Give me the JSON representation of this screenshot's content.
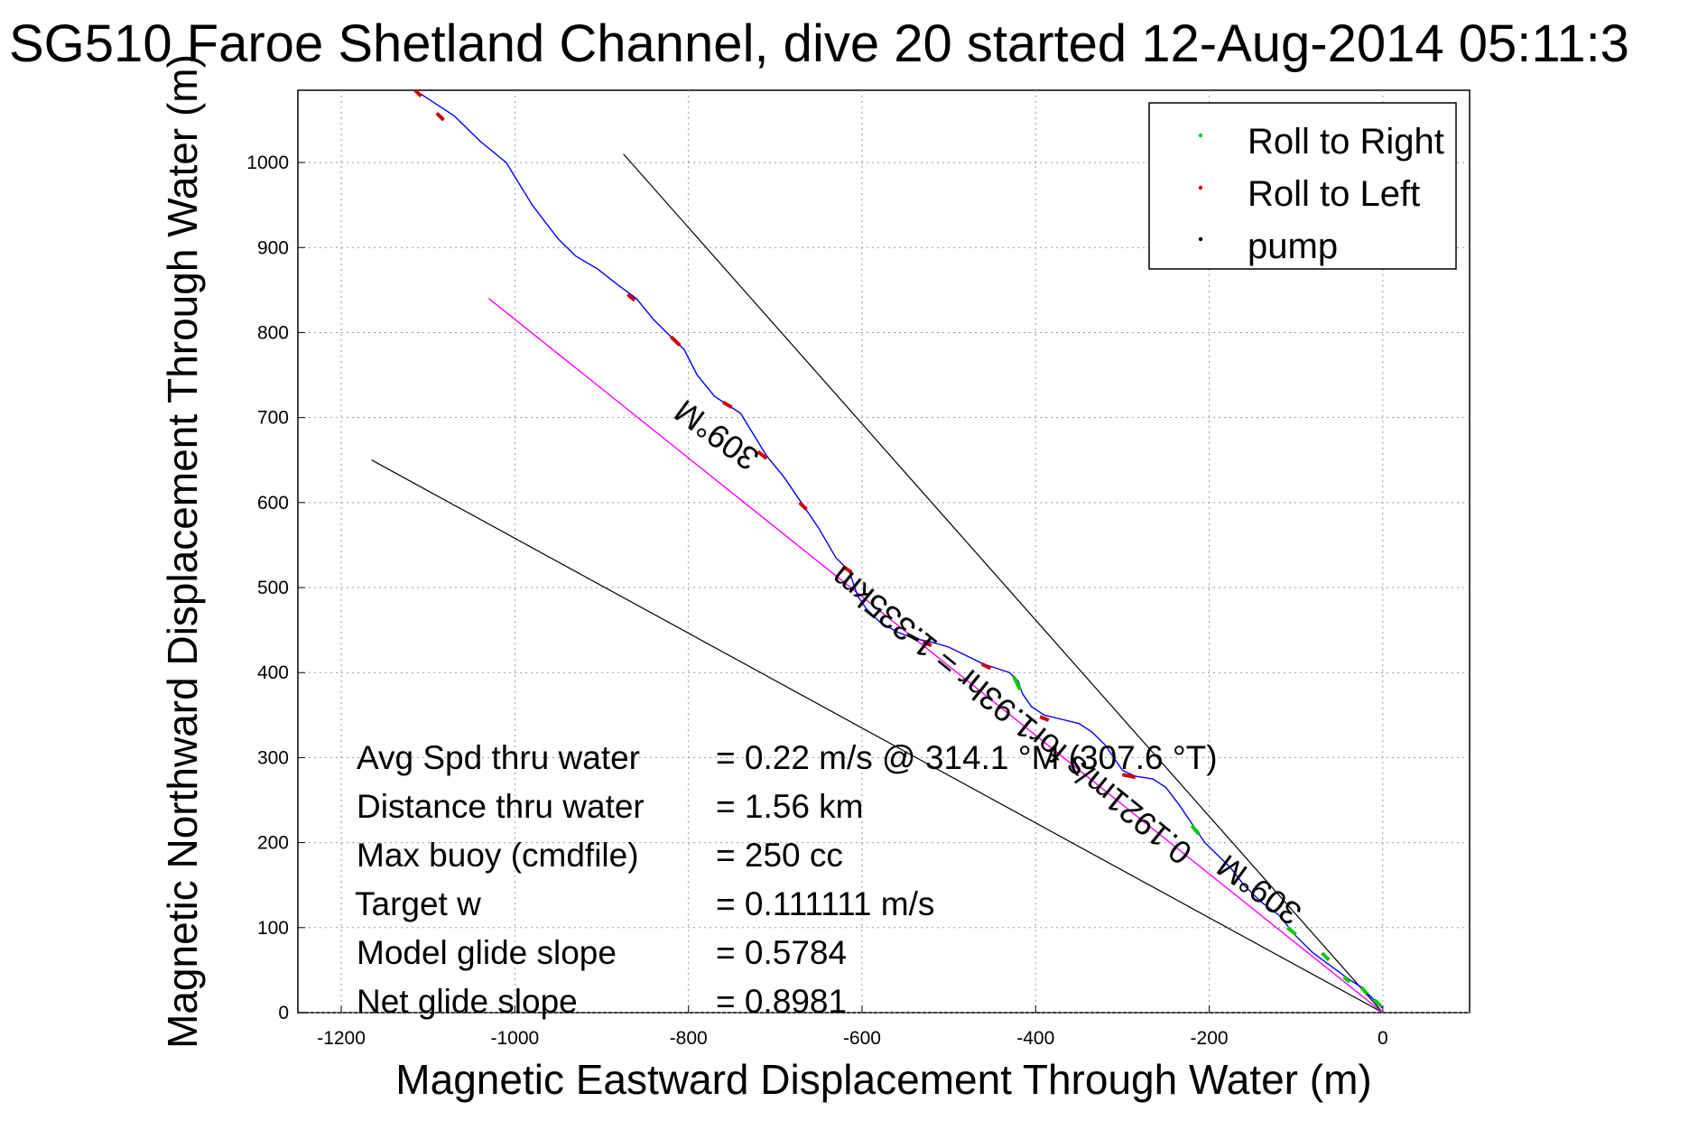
{
  "chart_data": {
    "type": "line",
    "title": "SG510 Faroe Shetland Channel, dive 20 started 12-Aug-2014 05:11:3",
    "xlabel": "Magnetic Eastward Displacement Through Water (m)",
    "ylabel": "Magnetic Northward Displacement Through Water (m)",
    "xlim": [
      -1250,
      100
    ],
    "ylim": [
      0,
      1085
    ],
    "xticks": [
      -1200,
      -1000,
      -800,
      -600,
      -400,
      -200,
      0
    ],
    "yticks": [
      0,
      100,
      200,
      300,
      400,
      500,
      600,
      700,
      800,
      900,
      1000
    ],
    "grid": true,
    "legend": {
      "placement": "top-right",
      "entries": [
        {
          "label": "Roll to Right",
          "color": "#00cc00"
        },
        {
          "label": "Roll to Left",
          "color": "#cc0000"
        },
        {
          "label": "pump",
          "color": "#000000"
        }
      ]
    },
    "track": {
      "color": "#0000ff",
      "points": [
        [
          0,
          5
        ],
        [
          -10,
          15
        ],
        [
          -25,
          30
        ],
        [
          -40,
          40
        ],
        [
          -60,
          55
        ],
        [
          -80,
          70
        ],
        [
          -100,
          90
        ],
        [
          -120,
          115
        ],
        [
          -140,
          130
        ],
        [
          -160,
          150
        ],
        [
          -175,
          170
        ],
        [
          -190,
          185
        ],
        [
          -205,
          200
        ],
        [
          -215,
          215
        ],
        [
          -225,
          230
        ],
        [
          -235,
          245
        ],
        [
          -250,
          265
        ],
        [
          -265,
          275
        ],
        [
          -285,
          278
        ],
        [
          -300,
          285
        ],
        [
          -310,
          300
        ],
        [
          -320,
          315
        ],
        [
          -335,
          330
        ],
        [
          -350,
          340
        ],
        [
          -370,
          345
        ],
        [
          -390,
          350
        ],
        [
          -405,
          360
        ],
        [
          -415,
          375
        ],
        [
          -420,
          390
        ],
        [
          -430,
          400
        ],
        [
          -445,
          405
        ],
        [
          -460,
          410
        ],
        [
          -480,
          420
        ],
        [
          -500,
          430
        ],
        [
          -520,
          436
        ],
        [
          -540,
          440
        ],
        [
          -560,
          448
        ],
        [
          -580,
          460
        ],
        [
          -595,
          475
        ],
        [
          -605,
          490
        ],
        [
          -615,
          520
        ],
        [
          -630,
          535
        ],
        [
          -650,
          570
        ],
        [
          -670,
          600
        ],
        [
          -690,
          630
        ],
        [
          -710,
          655
        ],
        [
          -725,
          680
        ],
        [
          -740,
          705
        ],
        [
          -755,
          715
        ],
        [
          -770,
          725
        ],
        [
          -790,
          750
        ],
        [
          -805,
          780
        ],
        [
          -820,
          795
        ],
        [
          -840,
          815
        ],
        [
          -860,
          840
        ],
        [
          -880,
          855
        ],
        [
          -905,
          875
        ],
        [
          -930,
          890
        ],
        [
          -950,
          910
        ],
        [
          -980,
          950
        ],
        [
          -1010,
          1000
        ],
        [
          -1040,
          1025
        ],
        [
          -1070,
          1055
        ],
        [
          -1100,
          1075
        ],
        [
          -1115,
          1085
        ]
      ]
    },
    "roll_left_segments": [
      [
        [
          -1115,
          1085
        ],
        [
          -1108,
          1078
        ]
      ],
      [
        [
          -1090,
          1058
        ],
        [
          -1082,
          1050
        ]
      ],
      [
        [
          -870,
          845
        ],
        [
          -862,
          838
        ]
      ],
      [
        [
          -820,
          795
        ],
        [
          -810,
          785
        ]
      ],
      [
        [
          -760,
          718
        ],
        [
          -750,
          712
        ]
      ],
      [
        [
          -720,
          660
        ],
        [
          -710,
          652
        ]
      ],
      [
        [
          -672,
          600
        ],
        [
          -664,
          592
        ]
      ],
      [
        [
          -622,
          525
        ],
        [
          -612,
          518
        ]
      ],
      [
        [
          -530,
          436
        ],
        [
          -520,
          432
        ]
      ],
      [
        [
          -462,
          410
        ],
        [
          -452,
          405
        ]
      ],
      [
        [
          -395,
          348
        ],
        [
          -385,
          344
        ]
      ],
      [
        [
          -300,
          280
        ],
        [
          -285,
          277
        ]
      ]
    ],
    "roll_right_segments": [
      [
        [
          -425,
          395
        ],
        [
          -418,
          380
        ]
      ],
      [
        [
          -220,
          220
        ],
        [
          -212,
          210
        ]
      ],
      [
        [
          -110,
          100
        ],
        [
          -100,
          92
        ]
      ],
      [
        [
          -70,
          70
        ],
        [
          -62,
          62
        ]
      ],
      [
        [
          -45,
          42
        ],
        [
          -38,
          36
        ]
      ],
      [
        [
          -25,
          30
        ],
        [
          -18,
          22
        ]
      ],
      [
        [
          -10,
          15
        ],
        [
          -2,
          8
        ]
      ]
    ],
    "pump_segments": [
      [
        [
          -548,
          445
        ],
        [
          -535,
          438
        ]
      ]
    ],
    "heading_line": {
      "color": "#ff00ff",
      "points": [
        [
          0,
          0
        ],
        [
          -1030,
          840
        ]
      ]
    },
    "reference_lines": [
      {
        "color": "#000000",
        "points": [
          [
            0,
            0
          ],
          [
            -875,
            1010
          ]
        ]
      },
      {
        "color": "#000000",
        "points": [
          [
            0,
            0
          ],
          [
            -1165,
            650
          ]
        ]
      }
    ],
    "annotations": [
      {
        "text": "309°M",
        "x": -760,
        "y": 690,
        "rotation": 216
      },
      {
        "text": "309°M",
        "x": -135,
        "y": 155,
        "rotation": 216
      },
      {
        "text": "0.1921m/s for1.93hr = 1.335km",
        "x": -420,
        "y": 360,
        "rotation": 219
      }
    ],
    "summary": [
      {
        "label": "Avg Spd thru water",
        "value": "=  0.22 m/s @ 314.1 °M (307.6 °T)"
      },
      {
        "label": "Distance thru water",
        "value": "=  1.56 km"
      },
      {
        "label": "Max buoy (cmdfile)",
        "value": "= 250 cc"
      },
      {
        "label": "Target w",
        "value": "= 0.111111 m/s"
      },
      {
        "label": "Model glide slope",
        "value": "= 0.5784"
      },
      {
        "label": "Net glide slope",
        "value": "= 0.8981"
      }
    ]
  }
}
